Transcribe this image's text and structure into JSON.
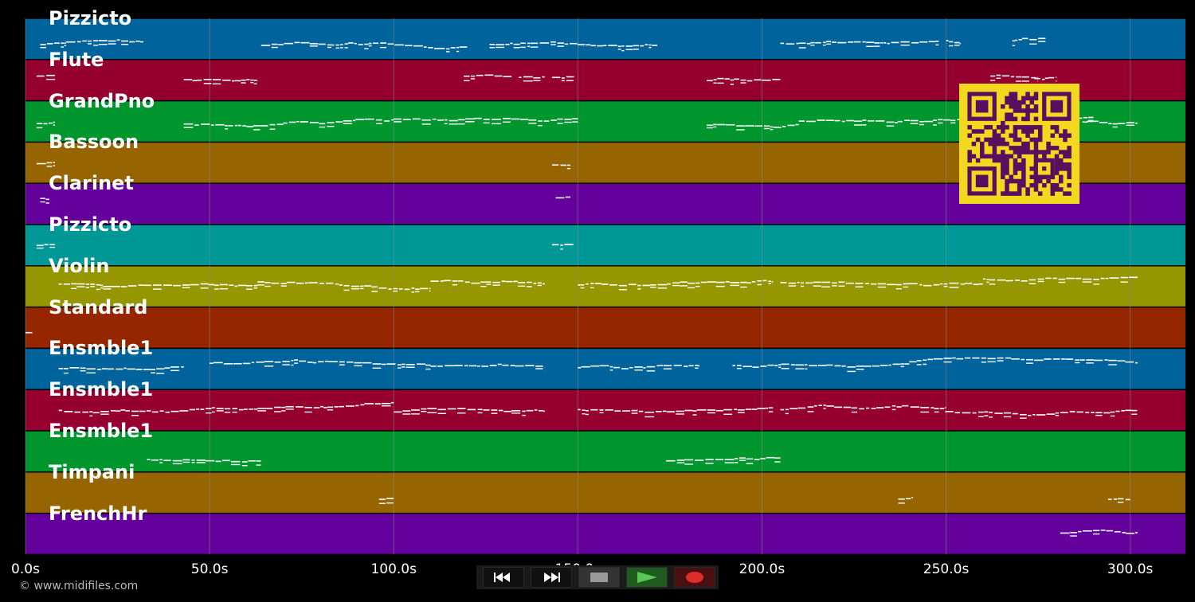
{
  "tracks": [
    {
      "name": "Pizzicto",
      "color": "#00639b",
      "notes": [
        [
          4,
          11,
          0.62
        ],
        [
          11,
          32,
          0.58
        ],
        [
          64,
          120,
          0.62
        ],
        [
          126,
          172,
          0.6
        ],
        [
          205,
          248,
          0.62
        ],
        [
          250,
          254,
          0.5
        ],
        [
          268,
          277,
          0.55
        ]
      ]
    },
    {
      "name": "Flute",
      "color": "#960030",
      "notes": [
        [
          3,
          8,
          0.38
        ],
        [
          43,
          63,
          0.48
        ],
        [
          119,
          132,
          0.38
        ],
        [
          134,
          141,
          0.44
        ],
        [
          143,
          149,
          0.42
        ],
        [
          185,
          205,
          0.48
        ],
        [
          262,
          275,
          0.38
        ],
        [
          274,
          280,
          0.42
        ]
      ]
    },
    {
      "name": "GrandPno",
      "color": "#00962e",
      "notes": [
        [
          3,
          8,
          0.55
        ],
        [
          43,
          70,
          0.55
        ],
        [
          70,
          100,
          0.54
        ],
        [
          100,
          150,
          0.45
        ],
        [
          185,
          210,
          0.55
        ],
        [
          210,
          260,
          0.5
        ],
        [
          258,
          290,
          0.45
        ],
        [
          287,
          302,
          0.5
        ]
      ]
    },
    {
      "name": "Bassoon",
      "color": "#966400",
      "notes": [
        [
          3,
          8,
          0.5
        ],
        [
          143,
          148,
          0.55
        ]
      ]
    },
    {
      "name": "Clarinet",
      "color": "#64009b",
      "notes": [
        [
          4,
          7,
          0.35
        ],
        [
          144,
          148,
          0.35
        ]
      ]
    },
    {
      "name": "Pizzicto",
      "color": "#009797",
      "notes": [
        [
          3,
          8,
          0.5
        ],
        [
          143,
          149,
          0.5
        ]
      ]
    },
    {
      "name": "Violin",
      "color": "#969600",
      "notes": [
        [
          9,
          63,
          0.45
        ],
        [
          63,
          110,
          0.35
        ],
        [
          110,
          141,
          0.35
        ],
        [
          150,
          203,
          0.45
        ],
        [
          205,
          260,
          0.4
        ],
        [
          260,
          302,
          0.28
        ]
      ]
    },
    {
      "name": "Standard",
      "color": "#962600",
      "notes": [
        [
          0,
          2,
          0.6
        ]
      ]
    },
    {
      "name": "Ensmble1",
      "color": "#00639b",
      "notes": [
        [
          9,
          43,
          0.45
        ],
        [
          50,
          110,
          0.35
        ],
        [
          110,
          141,
          0.4
        ],
        [
          150,
          183,
          0.45
        ],
        [
          192,
          240,
          0.4
        ],
        [
          240,
          302,
          0.3
        ]
      ]
    },
    {
      "name": "Ensmble1",
      "color": "#960030",
      "notes": [
        [
          9,
          63,
          0.5
        ],
        [
          63,
          100,
          0.45
        ],
        [
          100,
          141,
          0.5
        ],
        [
          150,
          203,
          0.5
        ],
        [
          205,
          250,
          0.45
        ],
        [
          250,
          302,
          0.5
        ]
      ]
    },
    {
      "name": "Ensmble1",
      "color": "#00962e",
      "notes": [
        [
          33,
          64,
          0.7
        ],
        [
          174,
          205,
          0.7
        ]
      ]
    },
    {
      "name": "Timpani",
      "color": "#966400",
      "notes": [
        [
          96,
          100,
          0.65
        ],
        [
          237,
          241,
          0.65
        ],
        [
          294,
          300,
          0.65
        ]
      ]
    },
    {
      "name": "FrenchHr",
      "color": "#64009b",
      "notes": [
        [
          281,
          302,
          0.48
        ]
      ]
    }
  ],
  "time_axis": {
    "max_seconds": 315,
    "ticks": [
      {
        "v": 0,
        "label": "0.0s"
      },
      {
        "v": 50,
        "label": "50.0s"
      },
      {
        "v": 100,
        "label": "100.0s"
      },
      {
        "v": 150,
        "label": "150.0s"
      },
      {
        "v": 200,
        "label": "200.0s"
      },
      {
        "v": 250,
        "label": "250.0s"
      },
      {
        "v": 300,
        "label": "300.0s"
      }
    ]
  },
  "copyright": "© www.midifiles.com",
  "transport": [
    {
      "name": "rewind-button",
      "icon": "rewind-icon",
      "bg": "#111111"
    },
    {
      "name": "fast-forward-button",
      "icon": "fast-forward-icon",
      "bg": "#111111"
    },
    {
      "name": "stop-button",
      "icon": "stop-icon",
      "bg": "#333333"
    },
    {
      "name": "play-button",
      "icon": "play-icon",
      "bg": "#1f5a1f"
    },
    {
      "name": "record-button",
      "icon": "record-icon",
      "bg": "#4a1010"
    }
  ],
  "qr": {
    "fg": "#5a0f5e",
    "bg": "#f2d81f"
  },
  "colors": {
    "background": "#000000",
    "gridline": "#8a8a8a",
    "note": "#ffffff"
  }
}
